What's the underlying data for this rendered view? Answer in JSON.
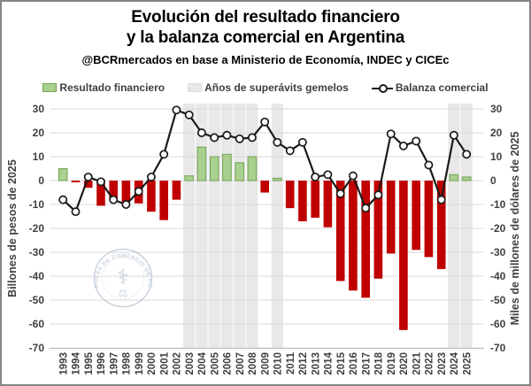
{
  "header": {
    "title_line1": "Evolución del resultado financiero",
    "title_line2": "y la balanza comercial en Argentina",
    "subtitle": "@BCRmercados en base a Ministerio de Economía, INDEC y CICEc"
  },
  "legend": {
    "financial_result": "Resultado financiero",
    "twin_surplus": "Años de superávits gemelos",
    "trade_balance": "Balanza comercial"
  },
  "watermark": {
    "text": "BOLSA DE COMERCIO DE ROSARIO"
  },
  "colors": {
    "bar_positive": "#a9d08e",
    "bar_positive_border": "#74a257",
    "bar_negative": "#c00000",
    "twin_band": "#e8e8e8",
    "line": "#1a1a1a",
    "marker_fill": "#ffffff",
    "grid": "#d9d9d9",
    "axis_line": "#bfbfbf",
    "axis_text": "#404040",
    "watermark": "#a3b2c4"
  },
  "chart_data": {
    "type": "bar+line combo, dual axis",
    "categories": [
      "1993",
      "1994",
      "1995",
      "1996",
      "1997",
      "1998",
      "1999",
      "2000",
      "2001",
      "2002",
      "2003",
      "2004",
      "2005",
      "2006",
      "2007",
      "2008",
      "2009",
      "2010",
      "2011",
      "2012",
      "2013",
      "2014",
      "2015",
      "2016",
      "2017",
      "2018",
      "2019",
      "2020",
      "2021",
      "2022",
      "2023",
      "2024",
      "2025"
    ],
    "series": [
      {
        "name": "Resultado financiero",
        "type": "bar",
        "axis": "left",
        "values": [
          5,
          -0.7,
          -3,
          -10.5,
          -8,
          -9,
          -9.5,
          -13,
          -16.5,
          -8,
          2,
          14,
          10,
          11,
          7.5,
          10,
          -5,
          1,
          -11.5,
          -17,
          -15.5,
          -19.5,
          -42,
          -46,
          -49,
          -41,
          -30.5,
          -62.5,
          -29,
          -32,
          -37,
          2.5,
          1.5
        ]
      },
      {
        "name": "Balanza comercial",
        "type": "line",
        "axis": "right",
        "values": [
          -8,
          -13,
          1.5,
          -0.5,
          -8,
          -10,
          -4.5,
          1.5,
          11,
          29.5,
          27.5,
          20,
          18,
          19,
          17.5,
          18,
          24.5,
          16,
          12.5,
          16,
          1.5,
          2.5,
          -5.5,
          2,
          -11.5,
          -6,
          19.5,
          14.5,
          16.5,
          6.5,
          -8,
          19,
          11
        ]
      }
    ],
    "twin_surplus_years": [
      2003,
      2004,
      2005,
      2006,
      2007,
      2008,
      2010,
      2024,
      2025
    ],
    "title": "Evolución del resultado financiero y la balanza comercial en Argentina",
    "ylabel_left": "Billones de pesos de 2025",
    "ylabel_right": "Miles de millones de dólares de 2025",
    "yticks": [
      30,
      20,
      10,
      0,
      -10,
      -20,
      -30,
      -40,
      -50,
      -60,
      -70
    ],
    "ylim": [
      -70,
      30
    ],
    "grid": "horizontal",
    "legend_position": "top"
  }
}
